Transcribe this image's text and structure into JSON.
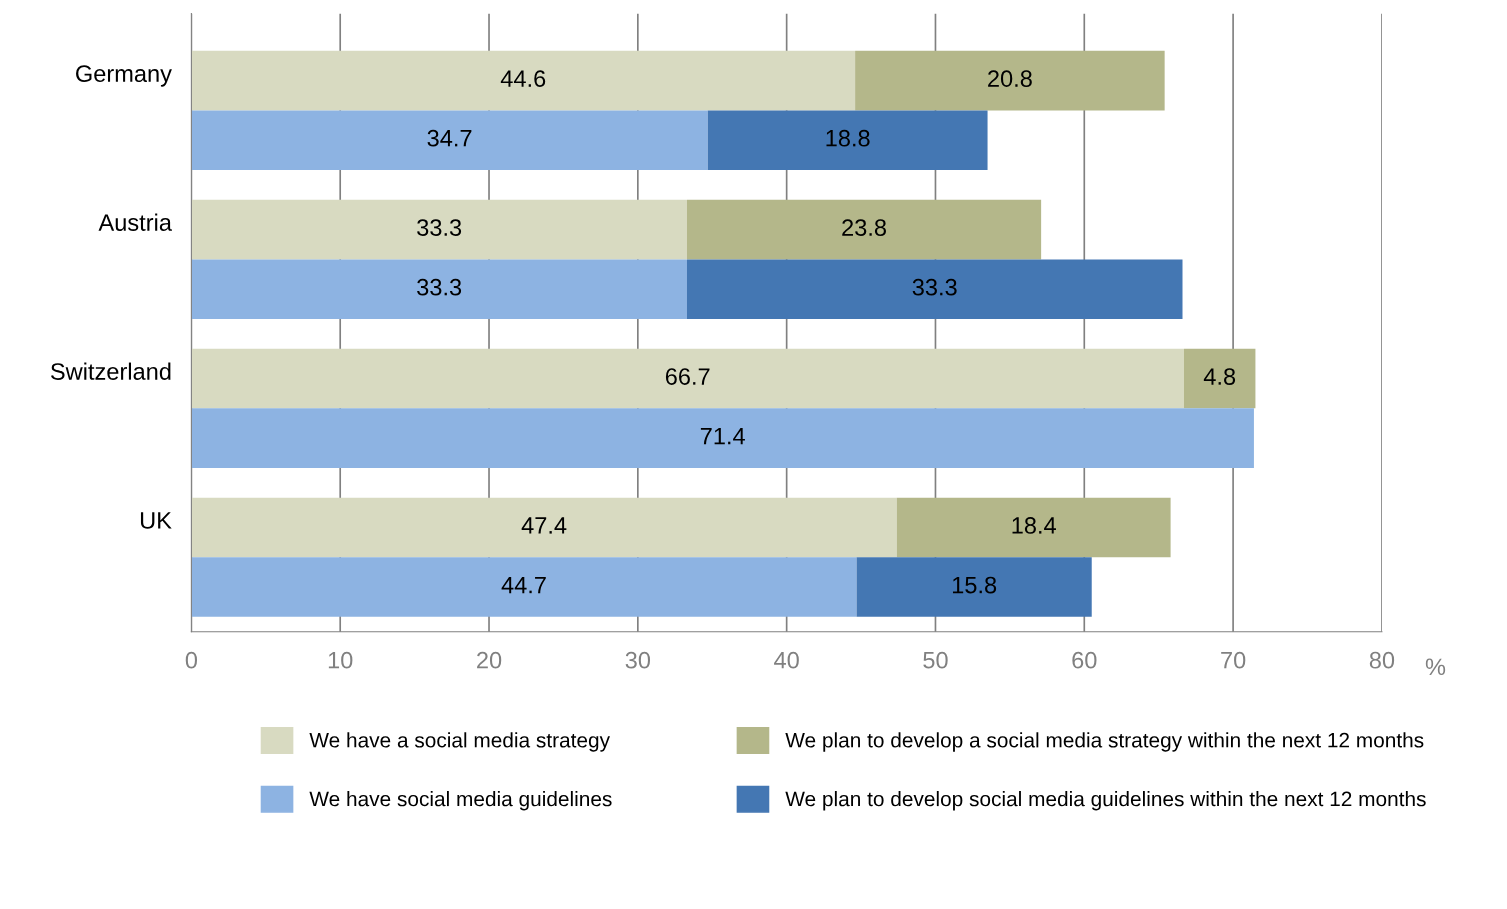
{
  "chart_data": {
    "type": "bar",
    "orientation": "horizontal",
    "stacked": true,
    "categories": [
      "Germany",
      null,
      "Austria",
      null,
      "Switzerland",
      null,
      "UK",
      null
    ],
    "series": [
      {
        "name": "We have a social media strategy",
        "color": "#d8dac1",
        "values": [
          44.6,
          null,
          33.3,
          null,
          66.7,
          null,
          47.4,
          null
        ]
      },
      {
        "name": "We plan to develop a social media strategy within the next 12 months",
        "color": "#b4b78a",
        "values": [
          20.8,
          null,
          23.8,
          null,
          4.8,
          null,
          18.4,
          null
        ]
      },
      {
        "name": "We have social media guidelines",
        "color": "#8db3e2",
        "values": [
          null,
          34.7,
          null,
          33.3,
          null,
          71.4,
          null,
          44.7
        ]
      },
      {
        "name": "We plan to develop social media guidelines within the next 12 months",
        "color": "#4477b3",
        "values": [
          null,
          18.8,
          null,
          33.3,
          null,
          null,
          null,
          15.8
        ]
      }
    ],
    "xlim": [
      0,
      80
    ],
    "xticks": [
      0,
      10,
      20,
      30,
      40,
      50,
      60,
      70,
      80
    ],
    "xlabel": "%",
    "grid": "x",
    "legend": "bottom",
    "data_labels": true
  }
}
